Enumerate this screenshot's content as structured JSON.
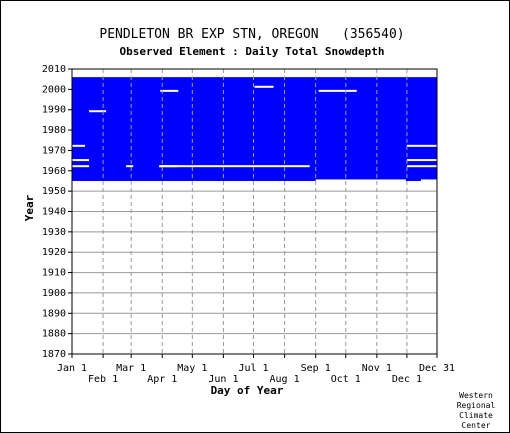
{
  "chart_data": {
    "type": "heatmap",
    "title": "PENDLETON BR EXP STN, OREGON   (356540)",
    "subtitle": "Observed Element : Daily Total Snowdepth",
    "xlabel": "Day of Year",
    "ylabel": "Year",
    "xlim": [
      1,
      365
    ],
    "ylim": [
      1870,
      2010
    ],
    "x_ticks_upper": [
      {
        "label": "Jan 1",
        "day": 1
      },
      {
        "label": "Mar 1",
        "day": 60
      },
      {
        "label": "May 1",
        "day": 121
      },
      {
        "label": "Jul 1",
        "day": 182
      },
      {
        "label": "Sep 1",
        "day": 244
      },
      {
        "label": "Nov 1",
        "day": 305
      },
      {
        "label": "Dec 31",
        "day": 365
      }
    ],
    "x_ticks_lower": [
      {
        "label": "Feb 1",
        "day": 32
      },
      {
        "label": "Apr 1",
        "day": 91
      },
      {
        "label": "Jun 1",
        "day": 152
      },
      {
        "label": "Aug 1",
        "day": 213
      },
      {
        "label": "Oct 1",
        "day": 274
      },
      {
        "label": "Dec 1",
        "day": 335
      }
    ],
    "y_ticks": [
      1870,
      1880,
      1890,
      1900,
      1910,
      1920,
      1930,
      1940,
      1950,
      1960,
      1970,
      1980,
      1990,
      2000,
      2010
    ],
    "data_color": "#0000ff",
    "grid": true,
    "coverage": {
      "description": "Daily records present (blue) for nearly all days from 1955 through 2005",
      "full_block": {
        "day_start": 1,
        "day_end": 365,
        "year_start": 1955,
        "year_end": 2005
      },
      "gaps": [
        {
          "day_start": 1,
          "day_end": 14,
          "year": 1972
        },
        {
          "day_start": 1,
          "day_end": 18,
          "year": 1965
        },
        {
          "day_start": 1,
          "day_end": 18,
          "year": 1962
        },
        {
          "day_start": 18,
          "day_end": 35,
          "year": 1989
        },
        {
          "day_start": 55,
          "day_end": 62,
          "year": 1962
        },
        {
          "day_start": 88,
          "day_end": 107,
          "year": 1962
        },
        {
          "day_start": 88,
          "day_end": 238,
          "year": 1962
        },
        {
          "day_start": 89,
          "day_end": 107,
          "year": 1999
        },
        {
          "day_start": 183,
          "day_end": 202,
          "year": 2001
        },
        {
          "day_start": 247,
          "day_end": 285,
          "year": 1999
        },
        {
          "day_start": 335,
          "day_end": 365,
          "year": 1972
        },
        {
          "day_start": 335,
          "day_end": 365,
          "year": 1965
        },
        {
          "day_start": 335,
          "day_end": 365,
          "year": 1962
        },
        {
          "day_start": 244,
          "day_end": 334,
          "year": 1955
        },
        {
          "day_start": 349,
          "day_end": 365,
          "year": 1955
        }
      ]
    }
  },
  "credit": [
    "Western",
    "Regional",
    "Climate",
    "Center"
  ]
}
